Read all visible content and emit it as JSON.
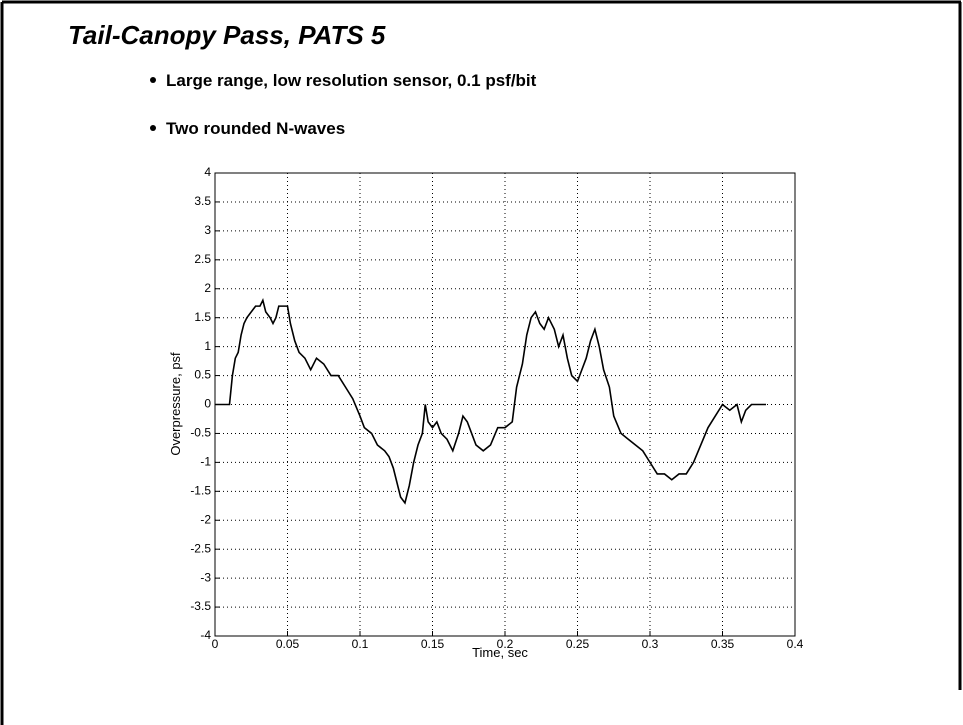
{
  "chart_data": {
    "type": "line",
    "title": "Tail-Canopy Pass, PATS 5",
    "bullets": [
      "Large range, low resolution sensor, 0.1 psf/bit",
      "Two rounded N-waves"
    ],
    "x_label": "Time, sec",
    "y_label": "Overpressure, psf",
    "xlim": [
      0,
      0.4
    ],
    "ylim": [
      -4,
      4
    ],
    "xticks": [
      0,
      0.05,
      0.1,
      0.15,
      0.2,
      0.25,
      0.3,
      0.35,
      0.4
    ],
    "yticks": [
      -4,
      -3.5,
      -3,
      -2.5,
      -2,
      -1.5,
      -1,
      -0.5,
      0,
      0.5,
      1,
      1.5,
      2,
      2.5,
      3,
      3.5,
      4
    ],
    "grid": true,
    "series": [
      {
        "color": "#000000",
        "x": [
          0,
          0.01,
          0.012,
          0.014,
          0.016,
          0.018,
          0.02,
          0.022,
          0.025,
          0.028,
          0.031,
          0.033,
          0.035,
          0.038,
          0.04,
          0.042,
          0.044,
          0.046,
          0.05,
          0.052,
          0.055,
          0.058,
          0.062,
          0.066,
          0.07,
          0.075,
          0.08,
          0.085,
          0.09,
          0.095,
          0.1,
          0.103,
          0.108,
          0.112,
          0.117,
          0.12,
          0.123,
          0.126,
          0.128,
          0.131,
          0.134,
          0.137,
          0.14,
          0.143,
          0.145,
          0.147,
          0.15,
          0.153,
          0.156,
          0.16,
          0.164,
          0.168,
          0.171,
          0.174,
          0.177,
          0.18,
          0.185,
          0.19,
          0.195,
          0.2,
          0.205,
          0.208,
          0.212,
          0.215,
          0.218,
          0.221,
          0.224,
          0.227,
          0.23,
          0.234,
          0.237,
          0.24,
          0.243,
          0.246,
          0.25,
          0.253,
          0.256,
          0.259,
          0.262,
          0.265,
          0.268,
          0.272,
          0.275,
          0.28,
          0.285,
          0.29,
          0.295,
          0.3,
          0.305,
          0.31,
          0.315,
          0.32,
          0.325,
          0.33,
          0.335,
          0.34,
          0.345,
          0.35,
          0.355,
          0.36,
          0.363,
          0.366,
          0.37,
          0.375,
          0.38
        ],
        "values": [
          0,
          0,
          0.5,
          0.8,
          0.9,
          1.2,
          1.4,
          1.5,
          1.6,
          1.7,
          1.7,
          1.8,
          1.6,
          1.5,
          1.4,
          1.5,
          1.7,
          1.7,
          1.7,
          1.4,
          1.1,
          0.9,
          0.8,
          0.6,
          0.8,
          0.7,
          0.5,
          0.5,
          0.3,
          0.1,
          -0.2,
          -0.4,
          -0.5,
          -0.7,
          -0.8,
          -0.9,
          -1.1,
          -1.4,
          -1.6,
          -1.7,
          -1.4,
          -1,
          -0.7,
          -0.5,
          0,
          -0.3,
          -0.4,
          -0.3,
          -0.5,
          -0.6,
          -0.8,
          -0.5,
          -0.2,
          -0.3,
          -0.5,
          -0.7,
          -0.8,
          -0.7,
          -0.4,
          -0.4,
          -0.3,
          0.3,
          0.7,
          1.2,
          1.5,
          1.6,
          1.4,
          1.3,
          1.5,
          1.3,
          1,
          1.2,
          0.8,
          0.5,
          0.4,
          0.6,
          0.8,
          1.1,
          1.3,
          1,
          0.6,
          0.3,
          -0.2,
          -0.5,
          -0.6,
          -0.7,
          -0.8,
          -1,
          -1.2,
          -1.2,
          -1.3,
          -1.2,
          -1.2,
          -1,
          -0.7,
          -0.4,
          -0.2,
          0,
          -0.1,
          0,
          -0.3,
          -0.1,
          0,
          0,
          0
        ]
      }
    ]
  }
}
